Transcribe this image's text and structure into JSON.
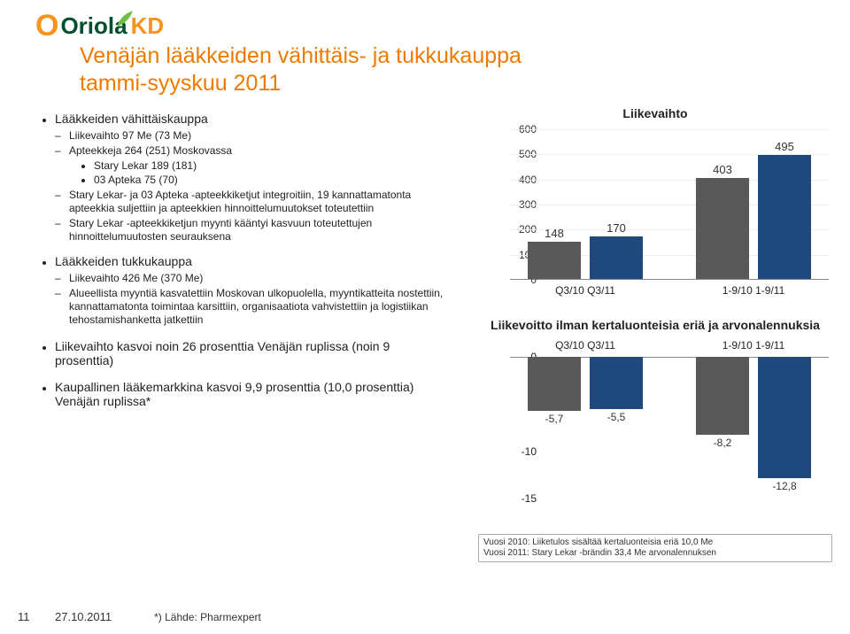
{
  "brand": {
    "name": "Oriola",
    "suffix": "KD"
  },
  "title": {
    "line1": "Venäjän lääkkeiden vähittäis- ja tukkukauppa",
    "line2": "tammi-syyskuu 2011"
  },
  "left": {
    "s1": {
      "head": "Lääkkeiden vähittäiskauppa",
      "li1": "Liikevaihto 97 Me (73 Me)",
      "li2": "Apteekkeja 264 (251) Moskovassa",
      "li2a": "Stary Lekar 189 (181)",
      "li2b": "03 Apteka 75 (70)",
      "li3": "Stary Lekar- ja 03 Apteka -apteekkiketjut integroitiin, 19 kannattamatonta apteekkia suljettiin ja apteekkien hinnoittelumuutokset toteutettiin",
      "li4": "Stary Lekar -apteekkiketjun myynti kääntyi kasvuun toteutettujen hinnoittelumuutosten seurauksena"
    },
    "s2": {
      "head": "Lääkkeiden tukkukauppa",
      "li1": "Liikevaihto 426 Me (370 Me)",
      "li2": "Alueellista myyntiä kasvatettiin Moskovan ulkopuolella, myyntikatteita nostettiin, kannattamatonta toimintaa karsittiin, organisaatiota vahvistettiin ja logistiikan tehostamishanketta jatkettiin"
    },
    "s3": {
      "head": "Liikevaihto kasvoi noin 26 prosenttia Venäjän ruplissa (noin 9 prosenttia)"
    },
    "s4": {
      "head": "Kaupallinen lääkemarkkina kasvoi 9,9 prosenttia (10,0 prosenttia) Venäjän ruplissa*"
    }
  },
  "chart1": {
    "title": "Liikevaihto",
    "type": "bar",
    "ylim": [
      0,
      600
    ],
    "ytick_step": 100,
    "categories": [
      "Q3/10",
      "Q3/11",
      "1-9/10",
      "1-9/11"
    ],
    "group_labels": [
      "Q3/10 Q3/11",
      "1-9/10 1-9/11"
    ],
    "values": [
      148,
      170,
      403,
      495
    ],
    "colors": [
      "#595959",
      "#1f497d",
      "#595959",
      "#1f497d"
    ],
    "label_color": "#333333",
    "grid_color": "#eeeeee",
    "axis_color": "#888888"
  },
  "chart2": {
    "title": "Liikevoitto ilman kertaluonteisia eriä ja arvonalennuksia",
    "type": "bar",
    "ylim": [
      -15,
      0
    ],
    "ytick_step": 5,
    "categories": [
      "Q3/10",
      "Q3/11",
      "1-9/10",
      "1-9/11"
    ],
    "group_labels": [
      "Q3/10 Q3/11",
      "1-9/10 1-9/11"
    ],
    "values": [
      -5.7,
      -5.5,
      -8.2,
      -12.8
    ],
    "labels": [
      "-5,7",
      "-5,5",
      "-8,2",
      "-12,8"
    ],
    "colors": [
      "#595959",
      "#1f497d",
      "#595959",
      "#1f497d"
    ]
  },
  "footnote_box": {
    "line1": "Vuosi 2010: Liiketulos sisältää kertaluonteisia eriä 10,0 Me",
    "line2": "Vuosi 2011: Stary Lekar -brändin 33,4 Me arvonalennuksen"
  },
  "footer": {
    "page": "11",
    "date": "27.10.2011",
    "source": "*) Lähde: Pharmexpert"
  }
}
